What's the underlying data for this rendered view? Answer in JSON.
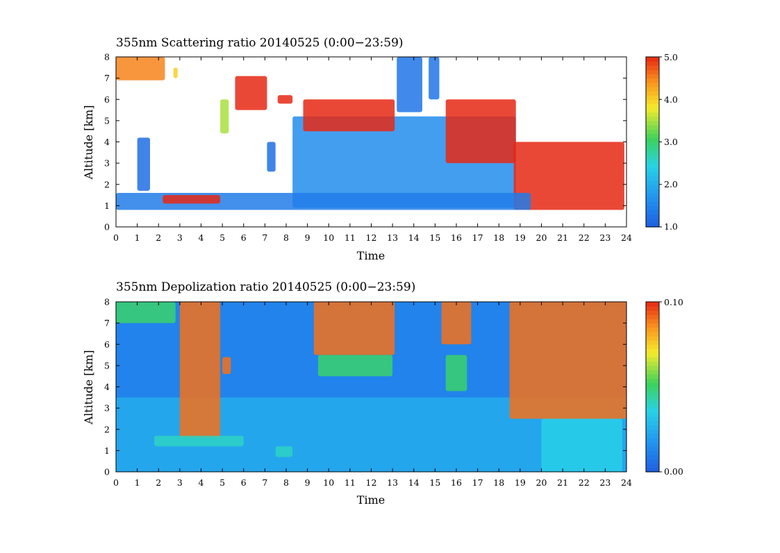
{
  "chart_data": [
    {
      "type": "heatmap",
      "title": "355nm Scattering ratio  20140525 (0:00−23:59)",
      "xlabel": "Time",
      "ylabel": "Altitude [km]",
      "xlim": [
        0,
        24
      ],
      "ylim": [
        0,
        8
      ],
      "xticks": [
        "0",
        "1",
        "2",
        "3",
        "4",
        "5",
        "6",
        "7",
        "8",
        "9",
        "10",
        "11",
        "12",
        "13",
        "14",
        "15",
        "16",
        "17",
        "18",
        "19",
        "20",
        "21",
        "22",
        "23",
        "24"
      ],
      "yticks": [
        "0",
        "1",
        "2",
        "3",
        "4",
        "5",
        "6",
        "7",
        "8"
      ],
      "colorbar": {
        "range": [
          1.0,
          5.0
        ],
        "ticks": [
          "1.0",
          "2.0",
          "3.0",
          "4.0",
          "5.0"
        ]
      },
      "background_color": "#ffffff",
      "features": [
        {
          "t": [
            0.0,
            2.3
          ],
          "z": [
            6.9,
            8.0
          ],
          "value": 4.5
        },
        {
          "t": [
            1.0,
            1.6
          ],
          "z": [
            1.7,
            4.2
          ],
          "value": 1.2
        },
        {
          "t": [
            2.7,
            2.9
          ],
          "z": [
            7.0,
            7.5
          ],
          "value": 4.0
        },
        {
          "t": [
            4.9,
            5.3
          ],
          "z": [
            4.4,
            6.0
          ],
          "value": 3.5
        },
        {
          "t": [
            5.6,
            7.1
          ],
          "z": [
            5.5,
            7.1
          ],
          "value": 5.0
        },
        {
          "t": [
            7.1,
            7.5
          ],
          "z": [
            2.6,
            4.0
          ],
          "value": 1.2
        },
        {
          "t": [
            7.6,
            8.3
          ],
          "z": [
            5.8,
            6.2
          ],
          "value": 5.0
        },
        {
          "t": [
            8.3,
            18.8
          ],
          "z": [
            0.9,
            5.2
          ],
          "value": 1.6
        },
        {
          "t": [
            8.8,
            13.1
          ],
          "z": [
            4.5,
            6.0
          ],
          "value": 5.0
        },
        {
          "t": [
            13.2,
            14.4
          ],
          "z": [
            5.4,
            8.0
          ],
          "value": 1.3
        },
        {
          "t": [
            14.7,
            15.2
          ],
          "z": [
            6.0,
            8.0
          ],
          "value": 1.3
        },
        {
          "t": [
            15.5,
            18.8
          ],
          "z": [
            3.0,
            6.0
          ],
          "value": 5.0
        },
        {
          "t": [
            18.7,
            23.9
          ],
          "z": [
            0.8,
            4.0
          ],
          "value": 5.0
        },
        {
          "t": [
            0.0,
            19.5
          ],
          "z": [
            0.8,
            1.6
          ],
          "value": 1.4
        },
        {
          "t": [
            2.2,
            4.9
          ],
          "z": [
            1.1,
            1.5
          ],
          "value": 5.0
        }
      ]
    },
    {
      "type": "heatmap",
      "title": "355nm Depolization ratio  20140525 (0:00−23:59)",
      "xlabel": "Time",
      "ylabel": "Altitude [km]",
      "xlim": [
        0,
        24
      ],
      "ylim": [
        0,
        8
      ],
      "xticks": [
        "0",
        "1",
        "2",
        "3",
        "4",
        "5",
        "6",
        "7",
        "8",
        "9",
        "10",
        "11",
        "12",
        "13",
        "14",
        "15",
        "16",
        "17",
        "18",
        "19",
        "20",
        "21",
        "22",
        "23",
        "24"
      ],
      "yticks": [
        "0",
        "1",
        "2",
        "3",
        "4",
        "5",
        "6",
        "7",
        "8"
      ],
      "colorbar": {
        "range": [
          0.0,
          0.1
        ],
        "ticks": [
          "0.00",
          "0.10"
        ]
      },
      "background_value": 0.012,
      "features": [
        {
          "t": [
            0.0,
            24.0
          ],
          "z": [
            0.0,
            3.5
          ],
          "value": 0.025
        },
        {
          "t": [
            0.0,
            2.8
          ],
          "z": [
            7.0,
            8.0
          ],
          "value": 0.05
        },
        {
          "t": [
            3.0,
            4.9
          ],
          "z": [
            1.6,
            8.0
          ],
          "value": 0.09
        },
        {
          "t": [
            5.0,
            5.4
          ],
          "z": [
            4.6,
            5.4
          ],
          "value": 0.09
        },
        {
          "t": [
            1.8,
            6.0
          ],
          "z": [
            1.2,
            1.7
          ],
          "value": 0.04
        },
        {
          "t": [
            7.5,
            8.3
          ],
          "z": [
            0.7,
            1.2
          ],
          "value": 0.04
        },
        {
          "t": [
            9.3,
            13.1
          ],
          "z": [
            5.5,
            8.0
          ],
          "value": 0.09
        },
        {
          "t": [
            9.5,
            13.0
          ],
          "z": [
            4.5,
            5.5
          ],
          "value": 0.05
        },
        {
          "t": [
            15.3,
            16.7
          ],
          "z": [
            6.0,
            8.0
          ],
          "value": 0.09
        },
        {
          "t": [
            15.5,
            16.5
          ],
          "z": [
            3.8,
            5.5
          ],
          "value": 0.05
        },
        {
          "t": [
            18.5,
            24.0
          ],
          "z": [
            2.5,
            8.0
          ],
          "value": 0.09
        },
        {
          "t": [
            20.0,
            23.8
          ],
          "z": [
            0.0,
            2.5
          ],
          "value": 0.035
        }
      ]
    }
  ]
}
